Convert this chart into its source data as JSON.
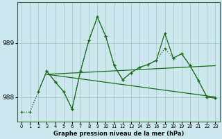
{
  "background_color": "#cce8ee",
  "grid_color": "#aacccc",
  "line_color": "#1a6b1a",
  "title": "Graphe pression niveau de la mer (hPa)",
  "yticks": [
    988,
    989
  ],
  "xlim": [
    -0.5,
    23.5
  ],
  "ylim": [
    987.55,
    989.75
  ],
  "line_dotted": {
    "x": [
      0,
      1,
      2,
      3,
      4,
      5,
      6,
      7,
      8,
      9,
      10,
      11,
      12,
      13,
      14,
      15,
      16,
      17,
      18,
      19,
      20,
      21,
      22,
      23
    ],
    "y": [
      987.72,
      987.72,
      988.1,
      988.48,
      988.28,
      988.1,
      987.78,
      988.48,
      989.05,
      989.48,
      989.12,
      988.58,
      988.32,
      988.45,
      988.55,
      988.6,
      988.68,
      988.9,
      988.72,
      988.8,
      988.58,
      988.3,
      988.0,
      987.98
    ]
  },
  "line_solid": {
    "x": [
      2,
      3,
      4,
      5,
      6,
      7,
      8,
      9,
      10,
      11,
      12,
      13,
      14,
      15,
      16,
      17,
      18,
      19,
      20,
      21,
      22,
      23
    ],
    "y": [
      988.1,
      988.48,
      988.28,
      988.1,
      987.78,
      988.48,
      989.05,
      989.48,
      989.12,
      988.58,
      988.32,
      988.45,
      988.55,
      988.6,
      988.68,
      989.18,
      988.72,
      988.8,
      988.58,
      988.3,
      988.0,
      987.98
    ]
  },
  "trend1": {
    "x": [
      3,
      23
    ],
    "y": [
      988.42,
      988.58
    ]
  },
  "trend2": {
    "x": [
      3,
      23
    ],
    "y": [
      988.42,
      988.0
    ]
  }
}
